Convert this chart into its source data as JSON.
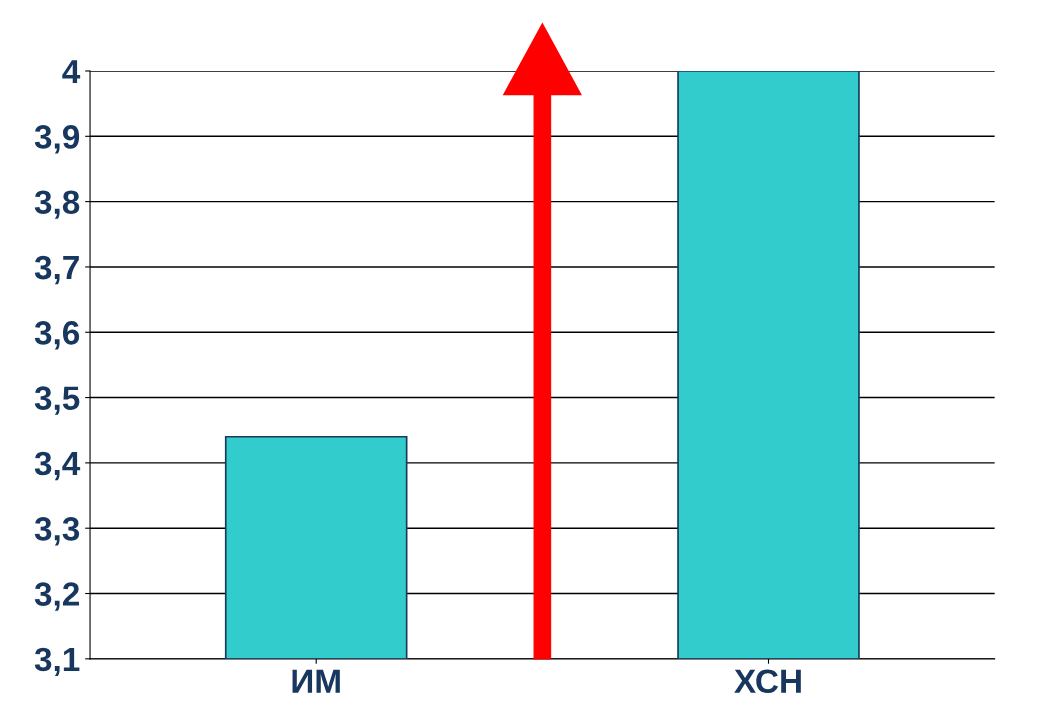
{
  "chart_data": {
    "type": "bar",
    "categories": [
      "ИМ",
      "ХСН"
    ],
    "values": [
      3.44,
      4.0
    ],
    "color": "#33cccc",
    "ylim": [
      3.1,
      4
    ],
    "yticks": [
      {
        "value": 3.1,
        "label": "3,1"
      },
      {
        "value": 3.2,
        "label": "3,2"
      },
      {
        "value": 3.3,
        "label": "3,3"
      },
      {
        "value": 3.4,
        "label": "3,4"
      },
      {
        "value": 3.5,
        "label": "3,5"
      },
      {
        "value": 3.6,
        "label": "3,6"
      },
      {
        "value": 3.7,
        "label": "3,7"
      },
      {
        "value": 3.8,
        "label": "3,8"
      },
      {
        "value": 3.9,
        "label": "3,9"
      },
      {
        "value": 4,
        "label": "4"
      }
    ],
    "grid": "y"
  }
}
